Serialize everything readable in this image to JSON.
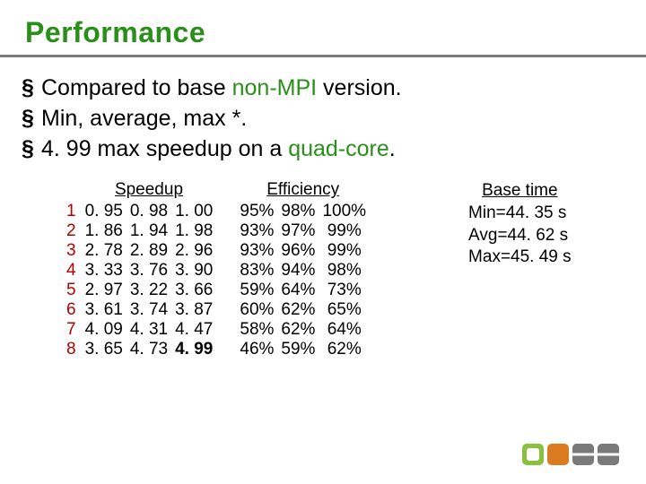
{
  "title": "Performance",
  "title_color": "#2a8f1a",
  "rule_color": "#7a7a7a",
  "bullet_mark": "§",
  "bullets": [
    {
      "prefix": "Compared to base ",
      "accent": "non-MPI",
      "suffix": " version."
    },
    {
      "prefix": "Min, average, max *.",
      "accent": "",
      "suffix": ""
    },
    {
      "prefix": "4. 99 max speedup on a ",
      "accent": "quad-core",
      "suffix": "."
    }
  ],
  "table": {
    "speedup_header": "Speedup",
    "efficiency_header": "Efficiency",
    "row_index_color": "#b30000",
    "max_bold_value": "4. 99",
    "rows": [
      {
        "n": "1",
        "s_min": "0. 95",
        "s_avg": "0. 98",
        "s_max": "1. 00",
        "e_min": "95%",
        "e_avg": "98%",
        "e_max": "100%"
      },
      {
        "n": "2",
        "s_min": "1. 86",
        "s_avg": "1. 94",
        "s_max": "1. 98",
        "e_min": "93%",
        "e_avg": "97%",
        "e_max": "99%"
      },
      {
        "n": "3",
        "s_min": "2. 78",
        "s_avg": "2. 89",
        "s_max": "2. 96",
        "e_min": "93%",
        "e_avg": "96%",
        "e_max": "99%"
      },
      {
        "n": "4",
        "s_min": "3. 33",
        "s_avg": "3. 76",
        "s_max": "3. 90",
        "e_min": "83%",
        "e_avg": "94%",
        "e_max": "98%"
      },
      {
        "n": "5",
        "s_min": "2. 97",
        "s_avg": "3. 22",
        "s_max": "3. 66",
        "e_min": "59%",
        "e_avg": "64%",
        "e_max": "73%"
      },
      {
        "n": "6",
        "s_min": "3. 61",
        "s_avg": "3. 74",
        "s_max": "3. 87",
        "e_min": "60%",
        "e_avg": "62%",
        "e_max": "65%"
      },
      {
        "n": "7",
        "s_min": "4. 09",
        "s_avg": "4. 31",
        "s_max": "4. 47",
        "e_min": "58%",
        "e_avg": "62%",
        "e_max": "64%"
      },
      {
        "n": "8",
        "s_min": "3. 65",
        "s_avg": "4. 73",
        "s_max": "4. 99",
        "e_min": "46%",
        "e_avg": "59%",
        "e_max": "62%"
      }
    ]
  },
  "basetime": {
    "header": "Base time",
    "min": "Min=44. 35 s",
    "avg": "Avg=44. 62 s",
    "max": "Max=45. 49 s"
  },
  "logo": {
    "colors": {
      "green": "#8bbf3f",
      "orange": "#d97b1e",
      "gray": "#7a7a7a"
    }
  }
}
